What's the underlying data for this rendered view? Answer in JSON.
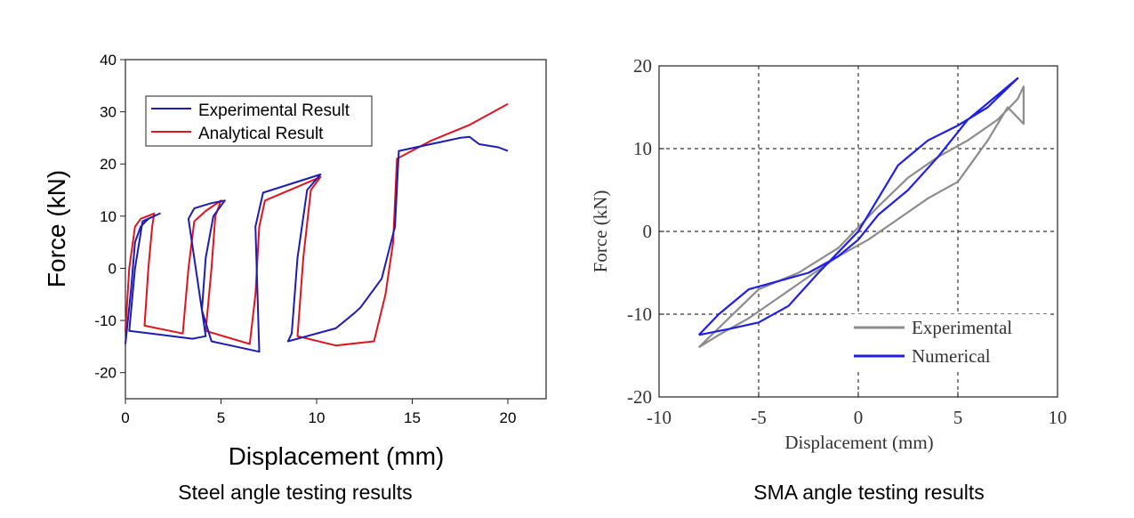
{
  "captions": {
    "left": "Steel angle testing results",
    "right": "SMA angle testing results"
  },
  "colors": {
    "experimental_blue": "#1c1cb4",
    "analytical_red": "#e0141e",
    "numerical_blue": "#1f1fe6",
    "experimental_gray": "#8c8c8c"
  },
  "chart_data": [
    {
      "type": "line",
      "title": "",
      "xlabel": "Displacement (mm)",
      "ylabel": "Force (kN)",
      "xlim": [
        0,
        22
      ],
      "ylim": [
        -25,
        40
      ],
      "xticks": [
        "0",
        "5",
        "10",
        "15",
        "20"
      ],
      "yticks": [
        "-20",
        "-10",
        "0",
        "10",
        "20",
        "30",
        "40"
      ],
      "grid": false,
      "legend_position": "top-left",
      "legend": [
        "Experimental Result",
        "Analytical Result"
      ],
      "series": [
        {
          "name": "Experimental Result",
          "points": [
            [
              0,
              -14.5
            ],
            [
              0.3,
              -4
            ],
            [
              0.5,
              5
            ],
            [
              0.8,
              8
            ],
            [
              1.2,
              9.5
            ],
            [
              1.8,
              10.5
            ],
            [
              0.9,
              9
            ],
            [
              0.5,
              0
            ],
            [
              0.2,
              -12
            ],
            [
              2,
              -12.8
            ],
            [
              3.5,
              -13.5
            ],
            [
              4.2,
              -13
            ],
            [
              3.3,
              9.5
            ],
            [
              3.6,
              11.5
            ],
            [
              4.5,
              12.5
            ],
            [
              5.2,
              13
            ],
            [
              4.6,
              10
            ],
            [
              4.2,
              2
            ],
            [
              4,
              -8
            ],
            [
              4.5,
              -14
            ],
            [
              7,
              -16
            ],
            [
              6.8,
              8
            ],
            [
              7.2,
              14.5
            ],
            [
              10.2,
              18
            ],
            [
              9.5,
              15
            ],
            [
              9,
              2
            ],
            [
              8.7,
              -12.5
            ],
            [
              8.5,
              -14
            ],
            [
              11,
              -11.5
            ],
            [
              12,
              -8.5
            ],
            [
              12.3,
              -7.5
            ],
            [
              13.4,
              -2
            ],
            [
              14.1,
              8
            ],
            [
              14.3,
              22.5
            ],
            [
              17.5,
              25
            ],
            [
              18,
              25.2
            ],
            [
              18.5,
              23.8
            ],
            [
              19.5,
              23.2
            ],
            [
              20,
              22.5
            ]
          ]
        },
        {
          "name": "Analytical Result",
          "points": [
            [
              0,
              -12
            ],
            [
              0.2,
              0
            ],
            [
              0.5,
              8
            ],
            [
              0.8,
              9.5
            ],
            [
              1.5,
              10.5
            ],
            [
              1.4,
              8
            ],
            [
              1.2,
              0
            ],
            [
              1,
              -11
            ],
            [
              3,
              -12.5
            ],
            [
              3.3,
              0
            ],
            [
              3.6,
              9
            ],
            [
              4.2,
              11
            ],
            [
              5,
              13
            ],
            [
              4.7,
              10
            ],
            [
              4.5,
              0
            ],
            [
              4.2,
              -12
            ],
            [
              6.5,
              -14.5
            ],
            [
              6.8,
              -5
            ],
            [
              7,
              8
            ],
            [
              7.3,
              13
            ],
            [
              10.2,
              17.5
            ],
            [
              9.7,
              15
            ],
            [
              9.3,
              2
            ],
            [
              9,
              -13
            ],
            [
              11,
              -14.8
            ],
            [
              13,
              -14
            ],
            [
              13.6,
              -5
            ],
            [
              14,
              5
            ],
            [
              14.2,
              21
            ],
            [
              16,
              24.5
            ],
            [
              18,
              27.5
            ],
            [
              20,
              31.5
            ]
          ]
        }
      ]
    },
    {
      "type": "line",
      "title": "",
      "xlabel": "Displacement (mm)",
      "ylabel": "Force (kN)",
      "xlim": [
        -10,
        10
      ],
      "ylim": [
        -20,
        20
      ],
      "xticks": [
        "-10",
        "-5",
        "0",
        "5",
        "10"
      ],
      "yticks": [
        "-20",
        "-10",
        "0",
        "10",
        "20"
      ],
      "grid": true,
      "legend_position": "bottom-right",
      "legend": [
        "Experimental",
        "Numerical"
      ],
      "series": [
        {
          "name": "Experimental",
          "points": [
            [
              -8,
              -14
            ],
            [
              -6.5,
              -10.5
            ],
            [
              -5,
              -7
            ],
            [
              -3,
              -5
            ],
            [
              -1,
              -2
            ],
            [
              0,
              0.5
            ],
            [
              1,
              3
            ],
            [
              2.5,
              6.5
            ],
            [
              4,
              9
            ],
            [
              5.5,
              11
            ],
            [
              7,
              13.5
            ],
            [
              8,
              16
            ],
            [
              8.3,
              17.5
            ],
            [
              8.3,
              13
            ],
            [
              7.5,
              15
            ],
            [
              6.5,
              11
            ],
            [
              5,
              6
            ],
            [
              3.5,
              4
            ],
            [
              2,
              1.5
            ],
            [
              0.5,
              -1
            ],
            [
              -1,
              -3
            ],
            [
              -2.5,
              -5.5
            ],
            [
              -4,
              -8
            ],
            [
              -5.5,
              -10.5
            ],
            [
              -7,
              -12.5
            ],
            [
              -8,
              -14
            ]
          ]
        },
        {
          "name": "Numerical",
          "points": [
            [
              -8,
              -12.5
            ],
            [
              -6.5,
              -11.8
            ],
            [
              -5,
              -11
            ],
            [
              -3.5,
              -9
            ],
            [
              -2,
              -5
            ],
            [
              -1,
              -2.5
            ],
            [
              0,
              0
            ],
            [
              1,
              4
            ],
            [
              2,
              8
            ],
            [
              3.5,
              11
            ],
            [
              5,
              12.8
            ],
            [
              6.5,
              15
            ],
            [
              8,
              18.5
            ],
            [
              7,
              16.5
            ],
            [
              5.5,
              13.5
            ],
            [
              4,
              9
            ],
            [
              2.5,
              5
            ],
            [
              1,
              2
            ],
            [
              0,
              -1
            ],
            [
              -1,
              -3
            ],
            [
              -2.5,
              -5
            ],
            [
              -4,
              -6
            ],
            [
              -5.5,
              -7
            ],
            [
              -7,
              -10
            ],
            [
              -8,
              -12.5
            ]
          ]
        }
      ]
    }
  ]
}
